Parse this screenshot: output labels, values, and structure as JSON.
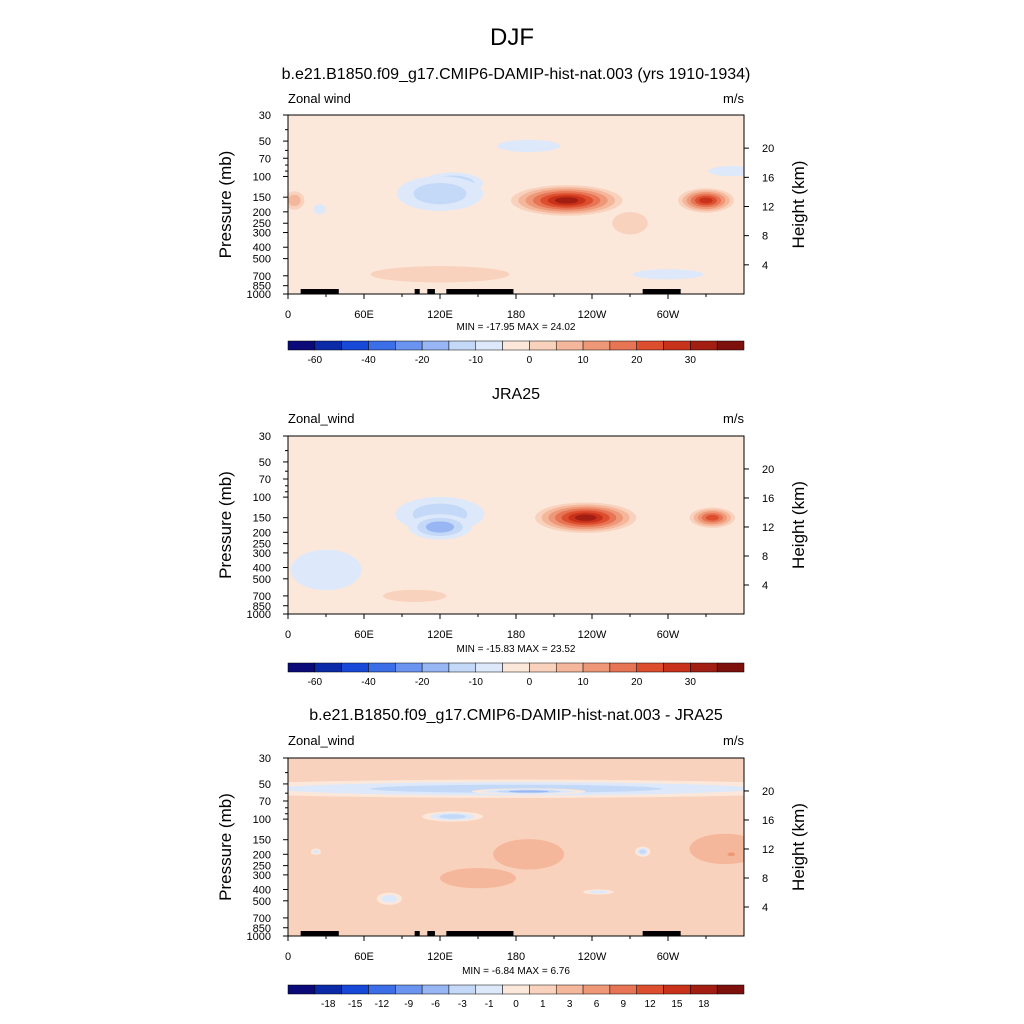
{
  "page_title": "DJF",
  "palettes": {
    "full": [
      "#0a0a78",
      "#0b2aa8",
      "#1848d8",
      "#3c6ee8",
      "#6a94ef",
      "#97b6f3",
      "#c4d9f8",
      "#dde9fb",
      "#fce8db",
      "#f9d2bd",
      "#f5b79b",
      "#ef9878",
      "#e77454",
      "#dc4e2d",
      "#c9321a",
      "#a31e12",
      "#7d0f0c"
    ],
    "diff": [
      "#0a0a78",
      "#0b2aa8",
      "#1848d8",
      "#3c6ee8",
      "#6a94ef",
      "#97b6f3",
      "#c4d9f8",
      "#dde9fb",
      "#fce8db",
      "#f9d2bd",
      "#f5b79b",
      "#ef9878",
      "#e77454",
      "#dc4e2d",
      "#c9321a",
      "#a31e12",
      "#7d0f0c"
    ]
  },
  "land_color": "#000000",
  "chart_data": [
    {
      "type": "heatmap",
      "title": "b.e21.B1850.f09_g17.CMIP6-DAMIP-hist-nat.003 (yrs 1910-1934)",
      "left_label": "Zonal wind",
      "units": "m/s",
      "ylabel": "Pressure (mb)",
      "y2label": "Height (km)",
      "x_ticks": [
        "0",
        "60E",
        "120E",
        "180",
        "120W",
        "60W"
      ],
      "x_tick_lons": [
        0,
        60,
        120,
        180,
        240,
        300
      ],
      "xlim": [
        0,
        360
      ],
      "y_ticks": [
        "30",
        "50",
        "70",
        "100",
        "150",
        "200",
        "250",
        "300",
        "400",
        "500",
        "700",
        "850",
        "1000"
      ],
      "y_tick_vals": [
        30,
        50,
        70,
        100,
        150,
        200,
        250,
        300,
        400,
        500,
        700,
        850,
        1000
      ],
      "ylim": [
        1000,
        30
      ],
      "y_scale": "log",
      "y2_ticks": [
        "20",
        "16",
        "12",
        "8",
        "4"
      ],
      "y2_tick_vals": [
        20,
        16,
        12,
        8,
        4
      ],
      "stats": "MIN = -17.95  MAX =  24.02",
      "min": -17.95,
      "max": 24.02,
      "palette": "full",
      "colorbar_ticks": [
        "-60",
        "-40",
        "-20",
        "-10",
        "0",
        "10",
        "20",
        "30"
      ],
      "background_level": 8,
      "features": [
        {
          "lon": 220,
          "p": 160,
          "rx": 44,
          "rlogp": 0.3,
          "level": 15
        },
        {
          "lon": 330,
          "p": 160,
          "rx": 22,
          "rlogp": 0.24,
          "level": 14
        },
        {
          "lon": 130,
          "p": 115,
          "rx": 24,
          "rlogp": 0.22,
          "level": 5
        },
        {
          "lon": 120,
          "p": 140,
          "rx": 34,
          "rlogp": 0.34,
          "level": 6
        },
        {
          "lon": 190,
          "p": 55,
          "rx": 25,
          "rlogp": 0.12,
          "level": 7
        },
        {
          "lon": 350,
          "p": 90,
          "rx": 18,
          "rlogp": 0.1,
          "level": 7
        },
        {
          "lon": 5,
          "p": 160,
          "rx": 8,
          "rlogp": 0.18,
          "level": 10
        },
        {
          "lon": 25,
          "p": 190,
          "rx": 5,
          "rlogp": 0.1,
          "level": 7
        },
        {
          "lon": 120,
          "p": 680,
          "rx": 55,
          "rlogp": 0.16,
          "level": 9
        },
        {
          "lon": 270,
          "p": 250,
          "rx": 14,
          "rlogp": 0.22,
          "level": 9
        },
        {
          "lon": 300,
          "p": 680,
          "rx": 28,
          "rlogp": 0.1,
          "level": 7
        }
      ],
      "land": [
        [
          10,
          40
        ],
        [
          25,
          40
        ],
        [
          100,
          104
        ],
        [
          110,
          116
        ],
        [
          125,
          178
        ],
        [
          280,
          310
        ]
      ]
    },
    {
      "type": "heatmap",
      "title": "JRA25",
      "left_label": "Zonal_wind",
      "units": "m/s",
      "ylabel": "Pressure (mb)",
      "y2label": "Height (km)",
      "x_ticks": [
        "0",
        "60E",
        "120E",
        "180",
        "120W",
        "60W"
      ],
      "x_tick_lons": [
        0,
        60,
        120,
        180,
        240,
        300
      ],
      "xlim": [
        0,
        360
      ],
      "y_ticks": [
        "30",
        "50",
        "70",
        "100",
        "150",
        "200",
        "250",
        "300",
        "400",
        "500",
        "700",
        "850",
        "1000"
      ],
      "y_tick_vals": [
        30,
        50,
        70,
        100,
        150,
        200,
        250,
        300,
        400,
        500,
        700,
        850,
        1000
      ],
      "ylim": [
        1000,
        30
      ],
      "y_scale": "log",
      "y2_ticks": [
        "20",
        "16",
        "12",
        "8",
        "4"
      ],
      "y2_tick_vals": [
        20,
        16,
        12,
        8,
        4
      ],
      "stats": "MIN = -15.83  MAX =  23.52",
      "min": -15.83,
      "max": 23.52,
      "palette": "full",
      "colorbar_ticks": [
        "-60",
        "-40",
        "-20",
        "-10",
        "0",
        "10",
        "20",
        "30"
      ],
      "background_level": 8,
      "features": [
        {
          "lon": 235,
          "p": 150,
          "rx": 40,
          "rlogp": 0.3,
          "level": 15
        },
        {
          "lon": 335,
          "p": 150,
          "rx": 18,
          "rlogp": 0.2,
          "level": 13
        },
        {
          "lon": 120,
          "p": 140,
          "rx": 35,
          "rlogp": 0.34,
          "level": 6
        },
        {
          "lon": 120,
          "p": 180,
          "rx": 25,
          "rlogp": 0.25,
          "level": 5
        },
        {
          "lon": 30,
          "p": 420,
          "rx": 28,
          "rlogp": 0.4,
          "level": 7
        },
        {
          "lon": 100,
          "p": 700,
          "rx": 25,
          "rlogp": 0.12,
          "level": 9
        }
      ],
      "land": []
    },
    {
      "type": "heatmap",
      "title": "b.e21.B1850.f09_g17.CMIP6-DAMIP-hist-nat.003 - JRA25",
      "left_label": "Zonal_wind",
      "units": "m/s",
      "ylabel": "Pressure (mb)",
      "y2label": "Height (km)",
      "x_ticks": [
        "0",
        "60E",
        "120E",
        "180",
        "120W",
        "60W"
      ],
      "x_tick_lons": [
        0,
        60,
        120,
        180,
        240,
        300
      ],
      "xlim": [
        0,
        360
      ],
      "y_ticks": [
        "30",
        "50",
        "70",
        "100",
        "150",
        "200",
        "250",
        "300",
        "400",
        "500",
        "700",
        "850",
        "1000"
      ],
      "y_tick_vals": [
        30,
        50,
        70,
        100,
        150,
        200,
        250,
        300,
        400,
        500,
        700,
        850,
        1000
      ],
      "ylim": [
        1000,
        30
      ],
      "y_scale": "log",
      "y2_ticks": [
        "20",
        "16",
        "12",
        "8",
        "4"
      ],
      "y2_tick_vals": [
        20,
        16,
        12,
        8,
        4
      ],
      "stats": "MIN = -6.84  MAX =  6.76",
      "min": -6.84,
      "max": 6.76,
      "palette": "diff",
      "colorbar_ticks": [
        "-18",
        "-15",
        "-12",
        "-9",
        "-6",
        "-3",
        "-1",
        "0",
        "1",
        "3",
        "6",
        "9",
        "12",
        "15",
        "18"
      ],
      "background_level": 9,
      "features": [
        {
          "lon": 180,
          "p": 55,
          "rx": 260,
          "rlogp": 0.18,
          "level": 6
        },
        {
          "lon": 190,
          "p": 58,
          "rx": 45,
          "rlogp": 0.06,
          "level": 5
        },
        {
          "lon": 130,
          "p": 95,
          "rx": 24,
          "rlogp": 0.1,
          "level": 6
        },
        {
          "lon": 190,
          "p": 200,
          "rx": 28,
          "rlogp": 0.3,
          "level": 10
        },
        {
          "lon": 345,
          "p": 180,
          "rx": 28,
          "rlogp": 0.3,
          "level": 10
        },
        {
          "lon": 350,
          "p": 200,
          "rx": 5,
          "rlogp": 0.06,
          "level": 11
        },
        {
          "lon": 280,
          "p": 190,
          "rx": 6,
          "rlogp": 0.1,
          "level": 6
        },
        {
          "lon": 22,
          "p": 190,
          "rx": 4,
          "rlogp": 0.06,
          "level": 7
        },
        {
          "lon": 80,
          "p": 480,
          "rx": 10,
          "rlogp": 0.12,
          "level": 7
        },
        {
          "lon": 245,
          "p": 420,
          "rx": 12,
          "rlogp": 0.05,
          "level": 7
        },
        {
          "lon": 150,
          "p": 320,
          "rx": 30,
          "rlogp": 0.2,
          "level": 10
        }
      ],
      "land": [
        [
          10,
          40
        ],
        [
          25,
          40
        ],
        [
          100,
          104
        ],
        [
          110,
          116
        ],
        [
          125,
          178
        ],
        [
          280,
          310
        ]
      ]
    }
  ]
}
